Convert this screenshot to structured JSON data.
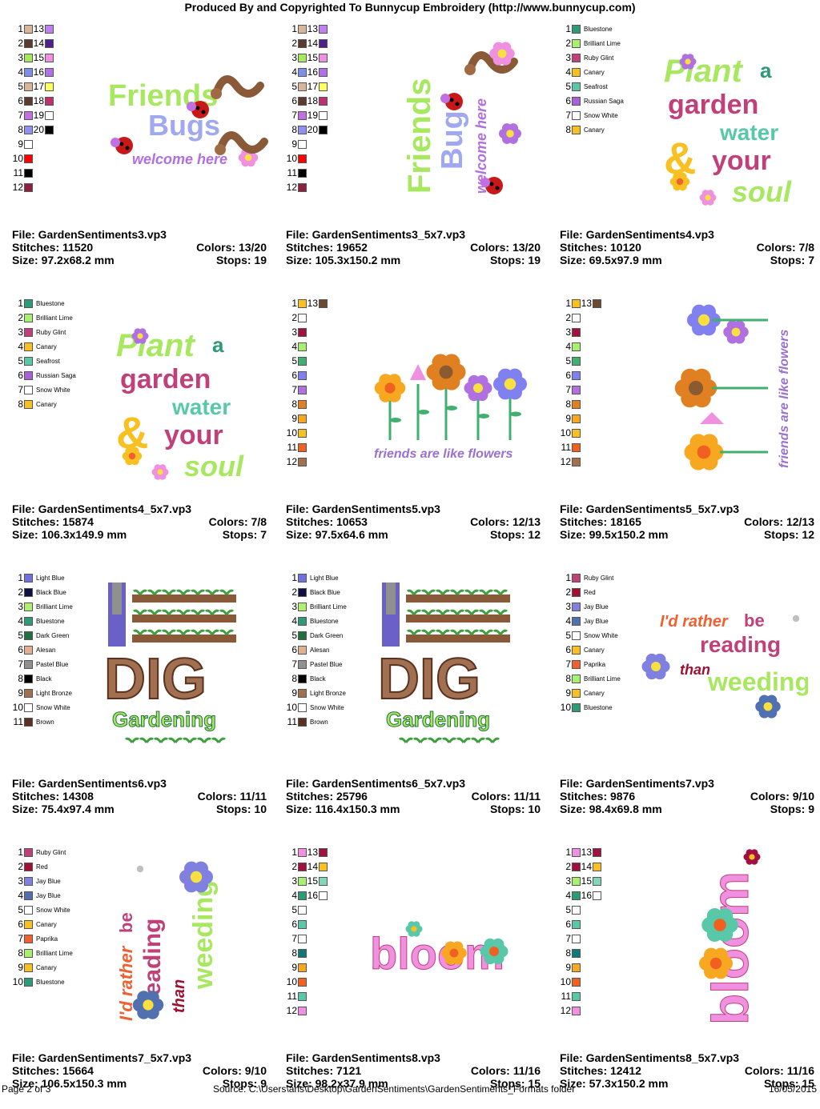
{
  "header": "Produced By and Copyrighted To Bunnycup Embroidery (http://www.bunnycup.com)",
  "labels": {
    "file": "File: ",
    "stitches": "Stitches: ",
    "colors": "Colors: ",
    "size": "Size: ",
    "stops": "Stops: "
  },
  "designs": [
    {
      "file": "GardenSentiments3.vp3",
      "stitches": "11520",
      "colors": "13/20",
      "size": "97.2x68.2 mm",
      "stops": "19",
      "art": "friends",
      "swatch_cols": [
        [
          [
            "1",
            "#d9b59a"
          ],
          [
            "2",
            "#5a3b2e"
          ],
          [
            "3",
            "#a8e85c"
          ],
          [
            "4",
            "#7b8ee8"
          ],
          [
            "5",
            "#d9b59a"
          ],
          [
            "6",
            "#5a3b2e"
          ],
          [
            "7",
            "#c070e0"
          ],
          [
            "8",
            "#9090f0"
          ],
          [
            "9",
            "#ffffff"
          ],
          [
            "10",
            "#ff0000"
          ],
          [
            "11",
            "#000000"
          ],
          [
            "12",
            "#8b2040"
          ]
        ],
        [
          [
            "13",
            "#c080f0"
          ],
          [
            "14",
            "#50208a"
          ],
          [
            "15",
            "#f090e0"
          ],
          [
            "16",
            "#b070e8"
          ],
          [
            "17",
            "#ffff60"
          ],
          [
            "18",
            "#c03070"
          ],
          [
            "19",
            "#ffffff"
          ],
          [
            "20",
            "#000000"
          ]
        ]
      ]
    },
    {
      "file": "GardenSentiments3_5x7.vp3",
      "stitches": "19652",
      "colors": "13/20",
      "size": "105.3x150.2 mm",
      "stops": "19",
      "art": "friends_tall",
      "swatch_cols": [
        [
          [
            "1",
            "#d9b59a"
          ],
          [
            "2",
            "#5a3b2e"
          ],
          [
            "3",
            "#a8e85c"
          ],
          [
            "4",
            "#7b8ee8"
          ],
          [
            "5",
            "#d9b59a"
          ],
          [
            "6",
            "#5a3b2e"
          ],
          [
            "7",
            "#c070e0"
          ],
          [
            "8",
            "#9090f0"
          ],
          [
            "9",
            "#ffffff"
          ],
          [
            "10",
            "#ff0000"
          ],
          [
            "11",
            "#000000"
          ],
          [
            "12",
            "#8b2040"
          ]
        ],
        [
          [
            "13",
            "#c080f0"
          ],
          [
            "14",
            "#50208a"
          ],
          [
            "15",
            "#f090e0"
          ],
          [
            "16",
            "#b070e8"
          ],
          [
            "17",
            "#ffff60"
          ],
          [
            "18",
            "#c03070"
          ],
          [
            "19",
            "#ffffff"
          ],
          [
            "20",
            "#000000"
          ]
        ]
      ]
    },
    {
      "file": "GardenSentiments4.vp3",
      "stitches": "10120",
      "colors": "7/8",
      "size": "69.5x97.9 mm",
      "stops": "7",
      "art": "plant",
      "swatch_cols": [
        [
          [
            "1",
            "#2e9a78",
            "Bluestone"
          ],
          [
            "2",
            "#a8f070",
            "Brilliant Lime"
          ],
          [
            "3",
            "#c0407a",
            "Ruby Glint"
          ],
          [
            "4",
            "#f8c020",
            "Canary"
          ],
          [
            "5",
            "#58c8a8",
            "Seafrost"
          ],
          [
            "6",
            "#a860d8",
            "Russian Saga"
          ],
          [
            "7",
            "#ffffff",
            "Snow White"
          ],
          [
            "8",
            "#f8c020",
            "Canary"
          ]
        ]
      ]
    },
    {
      "file": "GardenSentiments4_5x7.vp3",
      "stitches": "15874",
      "colors": "7/8",
      "size": "106.3x149.9 mm",
      "stops": "7",
      "art": "plant",
      "swatch_cols": [
        [
          [
            "1",
            "#2e9a78",
            "Bluestone"
          ],
          [
            "2",
            "#a8f070",
            "Brilliant Lime"
          ],
          [
            "3",
            "#c0407a",
            "Ruby Glint"
          ],
          [
            "4",
            "#f8c020",
            "Canary"
          ],
          [
            "5",
            "#58c8a8",
            "Seafrost"
          ],
          [
            "6",
            "#a860d8",
            "Russian Saga"
          ],
          [
            "7",
            "#ffffff",
            "Snow White"
          ],
          [
            "8",
            "#f8c020",
            "Canary"
          ]
        ]
      ]
    },
    {
      "file": "GardenSentiments5.vp3",
      "stitches": "10653",
      "colors": "12/13",
      "size": "97.5x64.6 mm",
      "stops": "12",
      "art": "flowers",
      "swatch_cols": [
        [
          [
            "1",
            "#f8c020"
          ],
          [
            "2",
            "#ffffff"
          ],
          [
            "3",
            "#a01040"
          ],
          [
            "4",
            "#a8f070"
          ],
          [
            "5",
            "#40b070"
          ],
          [
            "6",
            "#8080f0"
          ],
          [
            "7",
            "#b070e0"
          ],
          [
            "8",
            "#e08020"
          ],
          [
            "9",
            "#f8a820"
          ],
          [
            "10",
            "#f8c020"
          ],
          [
            "11",
            "#f06020"
          ],
          [
            "12",
            "#a07050"
          ]
        ],
        [
          [
            "13",
            "#6b4a30"
          ]
        ]
      ]
    },
    {
      "file": "GardenSentiments5_5x7.vp3",
      "stitches": "18165",
      "colors": "12/13",
      "size": "99.5x150.2 mm",
      "stops": "12",
      "art": "flowers_tall",
      "swatch_cols": [
        [
          [
            "1",
            "#f8c020"
          ],
          [
            "2",
            "#ffffff"
          ],
          [
            "3",
            "#a01040"
          ],
          [
            "4",
            "#a8f070"
          ],
          [
            "5",
            "#40b070"
          ],
          [
            "6",
            "#8080f0"
          ],
          [
            "7",
            "#b070e0"
          ],
          [
            "8",
            "#e08020"
          ],
          [
            "9",
            "#f8a820"
          ],
          [
            "10",
            "#f8c020"
          ],
          [
            "11",
            "#f06020"
          ],
          [
            "12",
            "#a07050"
          ]
        ],
        [
          [
            "13",
            "#6b4a30"
          ]
        ]
      ]
    },
    {
      "file": "GardenSentiments6.vp3",
      "stitches": "14308",
      "colors": "11/11",
      "size": "75.4x97.4 mm",
      "stops": "10",
      "art": "dig",
      "swatch_cols": [
        [
          [
            "1",
            "#7070e0",
            "Light Blue"
          ],
          [
            "2",
            "#101040",
            "Black Blue"
          ],
          [
            "3",
            "#b0f070",
            "Brilliant Lime"
          ],
          [
            "4",
            "#2e9a78",
            "Bluestone"
          ],
          [
            "5",
            "#207040",
            "Dark Green"
          ],
          [
            "6",
            "#e0b090",
            "Alesan"
          ],
          [
            "7",
            "#909090",
            "Pastel Blue"
          ],
          [
            "8",
            "#000000",
            "Black"
          ],
          [
            "9",
            "#a07050",
            "Light Bronze"
          ],
          [
            "10",
            "#ffffff",
            "Snow White"
          ],
          [
            "11",
            "#5a3020",
            "Brown"
          ]
        ]
      ]
    },
    {
      "file": "GardenSentiments6_5x7.vp3",
      "stitches": "25796",
      "colors": "11/11",
      "size": "116.4x150.3 mm",
      "stops": "10",
      "art": "dig",
      "swatch_cols": [
        [
          [
            "1",
            "#7070e0",
            "Light Blue"
          ],
          [
            "2",
            "#101040",
            "Black Blue"
          ],
          [
            "3",
            "#b0f070",
            "Brilliant Lime"
          ],
          [
            "4",
            "#2e9a78",
            "Bluestone"
          ],
          [
            "5",
            "#207040",
            "Dark Green"
          ],
          [
            "6",
            "#e0b090",
            "Alesan"
          ],
          [
            "7",
            "#909090",
            "Pastel Blue"
          ],
          [
            "8",
            "#000000",
            "Black"
          ],
          [
            "9",
            "#a07050",
            "Light Bronze"
          ],
          [
            "10",
            "#ffffff",
            "Snow White"
          ],
          [
            "11",
            "#5a3020",
            "Brown"
          ]
        ]
      ]
    },
    {
      "file": "GardenSentiments7.vp3",
      "stitches": "9876",
      "colors": "9/10",
      "size": "98.4x69.8 mm",
      "stops": "9",
      "art": "reading",
      "swatch_cols": [
        [
          [
            "1",
            "#c0407a",
            "Ruby Glint"
          ],
          [
            "2",
            "#a01030",
            "Red"
          ],
          [
            "3",
            "#8080e0",
            "Jay Blue"
          ],
          [
            "4",
            "#5070b0",
            "Jay Blue"
          ],
          [
            "5",
            "#ffffff",
            "Snow White"
          ],
          [
            "6",
            "#f8c020",
            "Canary"
          ],
          [
            "7",
            "#f06030",
            "Paprika"
          ],
          [
            "8",
            "#a8f070",
            "Brilliant Lime"
          ],
          [
            "9",
            "#f8c020",
            "Canary"
          ],
          [
            "10",
            "#2e9a78",
            "Bluestone"
          ]
        ]
      ]
    },
    {
      "file": "GardenSentiments7_5x7.vp3",
      "stitches": "15664",
      "colors": "9/10",
      "size": "106.5x150.3 mm",
      "stops": "9",
      "art": "reading_tall",
      "swatch_cols": [
        [
          [
            "1",
            "#c0407a",
            "Ruby Glint"
          ],
          [
            "2",
            "#a01030",
            "Red"
          ],
          [
            "3",
            "#8080e0",
            "Jay Blue"
          ],
          [
            "4",
            "#5070b0",
            "Jay Blue"
          ],
          [
            "5",
            "#ffffff",
            "Snow White"
          ],
          [
            "6",
            "#f8c020",
            "Canary"
          ],
          [
            "7",
            "#f06030",
            "Paprika"
          ],
          [
            "8",
            "#a8f070",
            "Brilliant Lime"
          ],
          [
            "9",
            "#f8c020",
            "Canary"
          ],
          [
            "10",
            "#2e9a78",
            "Bluestone"
          ]
        ]
      ]
    },
    {
      "file": "GardenSentiments8.vp3",
      "stitches": "7121",
      "colors": "11/16",
      "size": "98.2x37.9 mm",
      "stops": "15",
      "art": "bloom",
      "swatch_cols": [
        [
          [
            "1",
            "#f090e0"
          ],
          [
            "2",
            "#a01040"
          ],
          [
            "3",
            "#a8f070"
          ],
          [
            "4",
            "#2e9a78"
          ],
          [
            "5",
            "#ffffff"
          ],
          [
            "6",
            "#58c8a8"
          ],
          [
            "7",
            "#ffffff"
          ],
          [
            "8",
            "#107878"
          ],
          [
            "9",
            "#f8a820"
          ],
          [
            "10",
            "#f06020"
          ],
          [
            "11",
            "#58c8a8"
          ],
          [
            "12",
            "#f090e0"
          ]
        ],
        [
          [
            "13",
            "#a01040"
          ],
          [
            "14",
            "#f8c020"
          ],
          [
            "15",
            "#80d8b8"
          ],
          [
            "16",
            "#ffffff"
          ]
        ]
      ]
    },
    {
      "file": "GardenSentiments8_5x7.vp3",
      "stitches": "12412",
      "colors": "11/16",
      "size": "57.3x150.2 mm",
      "stops": "15",
      "art": "bloom_tall",
      "swatch_cols": [
        [
          [
            "1",
            "#f090e0"
          ],
          [
            "2",
            "#a01040"
          ],
          [
            "3",
            "#a8f070"
          ],
          [
            "4",
            "#2e9a78"
          ],
          [
            "5",
            "#ffffff"
          ],
          [
            "6",
            "#58c8a8"
          ],
          [
            "7",
            "#ffffff"
          ],
          [
            "8",
            "#107878"
          ],
          [
            "9",
            "#f8a820"
          ],
          [
            "10",
            "#f06020"
          ],
          [
            "11",
            "#58c8a8"
          ],
          [
            "12",
            "#f090e0"
          ]
        ],
        [
          [
            "13",
            "#a01040"
          ],
          [
            "14",
            "#f8c020"
          ],
          [
            "15",
            "#80d8b8"
          ],
          [
            "16",
            "#ffffff"
          ]
        ]
      ]
    }
  ],
  "art_text": {
    "friends": "Friends",
    "bugs": "Bugs",
    "welcome": "welcome here",
    "plant": "Plant",
    "a": "a",
    "garden": "garden",
    "water": "water",
    "your": "your",
    "soul": "soul",
    "flowers": "friends are like flowers",
    "dig": "DIG",
    "gardening": "Gardening",
    "idrather": "I'd rather",
    "be": "be",
    "reading": "reading",
    "than": "than",
    "weeding": "weeding",
    "bloom": "bloom"
  },
  "footer": {
    "page": "Page 2 of 3",
    "source": "Source: C:\\Users\\ans\\Desktop\\GardenSentiments\\GardenSentiments_Formats folder",
    "date": "16/05/2015"
  }
}
